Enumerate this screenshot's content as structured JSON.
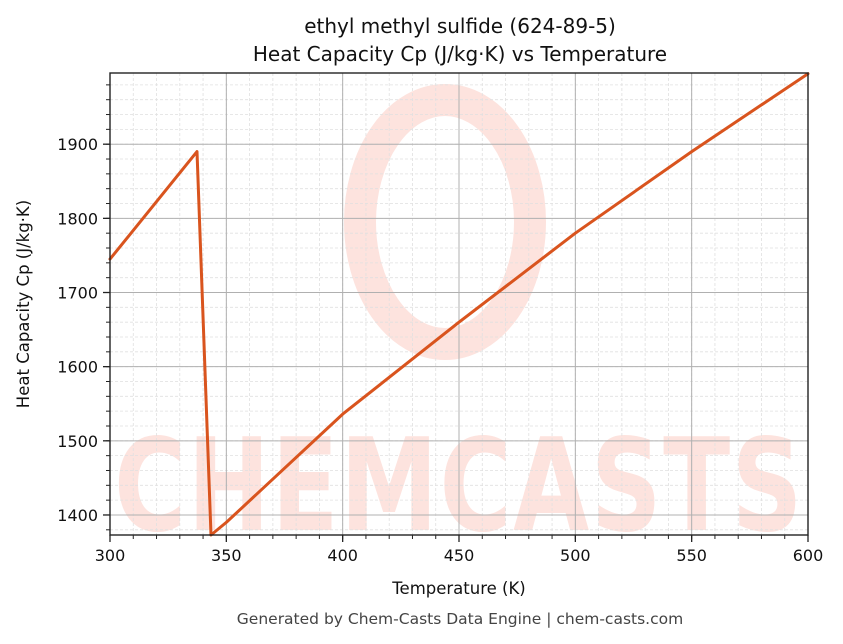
{
  "title": {
    "line1": "ethyl methyl sulfide (624-89-5)",
    "line2": "Heat Capacity Cp (J/kg·K) vs Temperature"
  },
  "footer": "Generated by Chem-Casts Data Engine | chem-casts.com",
  "watermark": {
    "text": "CHEMCASTS",
    "color": "#fde3de"
  },
  "colors": {
    "line": "#d9541e",
    "major_grid": "#b0b0b0",
    "minor_grid": "#e0e0e0",
    "axis": "#222222"
  },
  "chart_data": {
    "type": "line",
    "title": "ethyl methyl sulfide (624-89-5)\nHeat Capacity Cp (J/kg·K) vs Temperature",
    "xlabel": "Temperature (K)",
    "ylabel": "Heat Capacity Cp (J/kg·K)",
    "xlim": [
      300,
      600
    ],
    "ylim": [
      1373,
      1996
    ],
    "x_ticks": [
      300,
      350,
      400,
      450,
      500,
      550,
      600
    ],
    "y_ticks": [
      1400,
      1500,
      1600,
      1700,
      1800,
      1900
    ],
    "x_minor_step": 10,
    "y_minor_step": 20,
    "grid": true,
    "legend": null,
    "series": [
      {
        "name": "Cp",
        "color": "#d9541e",
        "x": [
          300,
          337.4,
          343.4,
          350,
          400,
          450,
          500,
          550,
          600
        ],
        "y": [
          1745,
          1890,
          1373,
          1390,
          1536,
          1660,
          1780,
          1890,
          1995
        ]
      }
    ]
  }
}
